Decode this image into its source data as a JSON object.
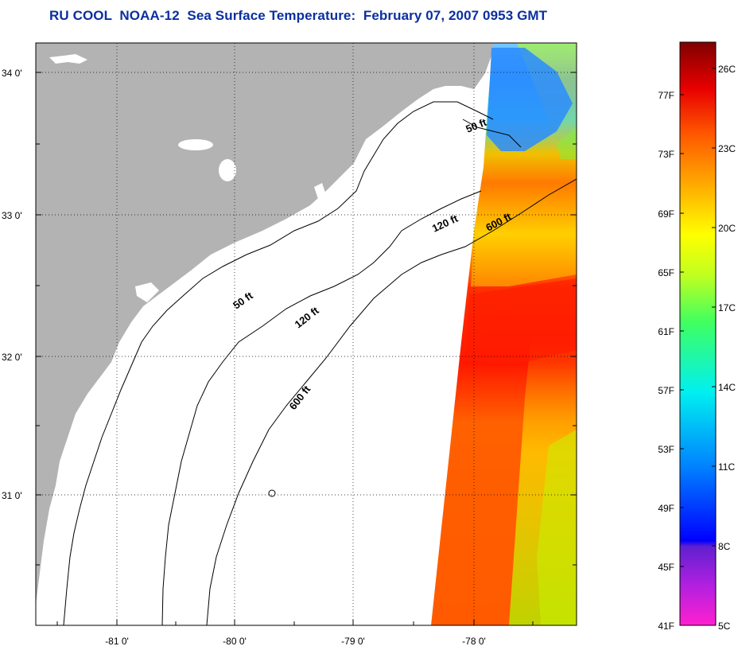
{
  "title": "RU COOL  NOAA-12  Sea Surface Temperature:  February 07, 2007 0953 GMT",
  "map": {
    "lat_labels": [
      "34 0'",
      "33 0'",
      "32 0'",
      "31 0'"
    ],
    "lon_labels": [
      "-81 0'",
      "-80 0'",
      "-79 0'",
      "-78 0'"
    ],
    "contour_labels": [
      {
        "text": "50 ft",
        "id": "50-ft-north"
      },
      {
        "text": "120 ft",
        "id": "120-ft-north"
      },
      {
        "text": "600 ft",
        "id": "600-ft-north"
      },
      {
        "text": "50 ft",
        "id": "50-ft-south"
      },
      {
        "text": "120 ft",
        "id": "120-ft-south"
      },
      {
        "text": "600 ft",
        "id": "600-ft-south"
      }
    ],
    "colors": {
      "land": "#b3b3b3",
      "sea": "#ffffff",
      "title": "#0b2fa0"
    }
  },
  "colorbar": {
    "f_labels": [
      "77F",
      "73F",
      "69F",
      "65F",
      "61F",
      "57F",
      "53F",
      "49F",
      "45F",
      "41F"
    ],
    "c_labels": [
      "26C",
      "23C",
      "20C",
      "17C",
      "14C",
      "11C",
      "8C",
      "5C"
    ]
  }
}
